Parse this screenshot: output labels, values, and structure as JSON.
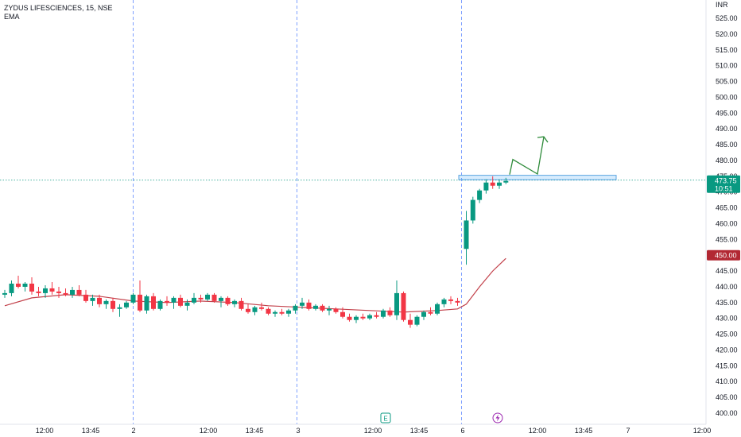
{
  "legend": {
    "symbol": "ZYDUS LIFESCIENCES, 15, NSE",
    "indicator": "EMA"
  },
  "chart_data": {
    "type": "candlestick",
    "currency": "INR",
    "ylim": [
      398,
      528
    ],
    "y_ticks": [
      "525.00",
      "520.00",
      "515.00",
      "510.00",
      "505.00",
      "500.00",
      "495.00",
      "490.00",
      "485.00",
      "480.00",
      "475.00",
      "470.00",
      "465.00",
      "460.00",
      "455.00",
      "450.00",
      "445.00",
      "440.00",
      "435.00",
      "430.00",
      "425.00",
      "420.00",
      "415.00",
      "410.00",
      "405.00",
      "400.00"
    ],
    "x_ticks": [
      "12:00",
      "13:45",
      "2",
      "12:00",
      "13:45",
      "3",
      "12:00",
      "13:45",
      "6",
      "12:00",
      "13:45",
      "7",
      "12:00"
    ],
    "day_separators": [
      "2",
      "3",
      "6"
    ],
    "last_price": {
      "value": "473.75",
      "countdown": "10:51",
      "color": "#089981"
    },
    "price_tag": {
      "value": "450.00",
      "color": "#b22833"
    },
    "up_color": "#089981",
    "down_color": "#f23645",
    "ema_color": "#c2404a",
    "candles": [
      [
        437.5,
        439.0,
        436.5,
        438.0
      ],
      [
        438.0,
        442.0,
        437.0,
        441.0
      ],
      [
        441.0,
        443.5,
        439.5,
        440.0
      ],
      [
        440.0,
        441.5,
        438.5,
        441.0
      ],
      [
        441.0,
        443.0,
        437.5,
        438.5
      ],
      [
        438.5,
        440.0,
        437.0,
        438.0
      ],
      [
        438.0,
        440.5,
        436.5,
        439.5
      ],
      [
        439.5,
        441.5,
        437.5,
        438.5
      ],
      [
        438.5,
        440.0,
        436.5,
        438.0
      ],
      [
        438.0,
        439.5,
        437.0,
        437.5
      ],
      [
        437.5,
        440.0,
        436.5,
        439.0
      ],
      [
        439.0,
        440.5,
        437.0,
        437.5
      ],
      [
        437.5,
        439.0,
        435.0,
        435.5
      ],
      [
        435.5,
        437.5,
        434.0,
        436.5
      ],
      [
        436.5,
        437.5,
        433.5,
        434.5
      ],
      [
        434.5,
        436.0,
        433.0,
        435.5
      ],
      [
        435.5,
        436.5,
        432.0,
        433.0
      ],
      [
        433.0,
        434.5,
        430.5,
        433.5
      ],
      [
        433.5,
        435.5,
        433.0,
        435.0
      ],
      [
        435.0,
        438.0,
        434.5,
        437.5
      ],
      [
        437.5,
        442.0,
        432.0,
        432.5
      ],
      [
        432.5,
        437.5,
        431.5,
        437.0
      ],
      [
        437.0,
        438.0,
        432.5,
        433.0
      ],
      [
        433.0,
        436.0,
        432.5,
        435.5
      ],
      [
        435.5,
        437.0,
        434.0,
        435.0
      ],
      [
        435.0,
        437.0,
        433.0,
        436.5
      ],
      [
        436.5,
        437.5,
        433.5,
        434.0
      ],
      [
        434.0,
        436.0,
        432.5,
        435.0
      ],
      [
        435.0,
        438.0,
        434.5,
        436.5
      ],
      [
        436.5,
        437.5,
        435.0,
        436.0
      ],
      [
        436.0,
        438.0,
        435.5,
        437.5
      ],
      [
        437.5,
        438.0,
        435.0,
        435.5
      ],
      [
        435.5,
        437.0,
        433.5,
        436.5
      ],
      [
        436.5,
        437.0,
        434.0,
        434.5
      ],
      [
        434.5,
        436.0,
        433.5,
        435.5
      ],
      [
        435.5,
        436.5,
        432.5,
        433.0
      ],
      [
        433.0,
        434.5,
        431.5,
        432.0
      ],
      [
        432.0,
        434.0,
        431.0,
        433.5
      ],
      [
        433.5,
        435.0,
        432.5,
        433.0
      ],
      [
        433.0,
        433.5,
        431.0,
        431.5
      ],
      [
        431.5,
        432.5,
        430.5,
        432.0
      ],
      [
        432.0,
        433.0,
        431.0,
        431.5
      ],
      [
        431.5,
        433.0,
        430.5,
        432.5
      ],
      [
        432.5,
        434.5,
        431.5,
        434.0
      ],
      [
        434.0,
        436.5,
        433.0,
        435.0
      ],
      [
        435.0,
        436.0,
        432.5,
        433.0
      ],
      [
        433.0,
        434.5,
        432.5,
        434.0
      ],
      [
        434.0,
        434.5,
        432.0,
        432.5
      ],
      [
        432.5,
        434.0,
        431.0,
        433.0
      ],
      [
        433.0,
        433.5,
        431.5,
        432.0
      ],
      [
        432.0,
        433.5,
        430.0,
        430.5
      ],
      [
        430.5,
        431.5,
        429.0,
        429.5
      ],
      [
        429.5,
        431.0,
        428.5,
        430.5
      ],
      [
        430.5,
        431.5,
        429.5,
        430.0
      ],
      [
        430.0,
        431.5,
        429.5,
        431.0
      ],
      [
        431.0,
        432.0,
        430.0,
        430.5
      ],
      [
        430.5,
        433.0,
        430.0,
        432.5
      ],
      [
        432.5,
        433.5,
        430.5,
        431.0
      ],
      [
        431.0,
        442.0,
        429.5,
        438.0
      ],
      [
        438.0,
        438.5,
        429.0,
        429.5
      ],
      [
        429.5,
        431.5,
        427.0,
        428.0
      ],
      [
        428.0,
        431.0,
        427.5,
        430.5
      ],
      [
        430.5,
        432.5,
        429.5,
        432.0
      ],
      [
        432.0,
        433.5,
        431.0,
        431.5
      ],
      [
        431.5,
        435.0,
        431.0,
        434.5
      ],
      [
        434.5,
        436.5,
        433.5,
        436.0
      ],
      [
        436.0,
        437.0,
        434.5,
        435.5
      ],
      [
        435.5,
        436.5,
        434.0,
        435.0
      ],
      [
        452.0,
        464.0,
        447.0,
        461.0
      ],
      [
        461.0,
        468.5,
        460.0,
        467.5
      ],
      [
        467.5,
        471.0,
        466.5,
        470.5
      ],
      [
        470.5,
        474.0,
        469.5,
        473.0
      ],
      [
        473.0,
        475.0,
        471.0,
        472.0
      ],
      [
        472.0,
        474.0,
        471.0,
        473.0
      ],
      [
        473.0,
        474.5,
        472.5,
        473.5
      ]
    ],
    "ema": [
      [
        0,
        434.0
      ],
      [
        4,
        436.5
      ],
      [
        9,
        437.5
      ],
      [
        14,
        437.0
      ],
      [
        19,
        435.5
      ],
      [
        24,
        435.0
      ],
      [
        29,
        435.5
      ],
      [
        34,
        435.0
      ],
      [
        39,
        434.0
      ],
      [
        44,
        433.5
      ],
      [
        49,
        433.0
      ],
      [
        54,
        432.5
      ],
      [
        59,
        432.0
      ],
      [
        64,
        432.5
      ],
      [
        67,
        433.0
      ],
      [
        68,
        434.5
      ],
      [
        70,
        440.0
      ],
      [
        72,
        445.0
      ],
      [
        74,
        449.0
      ]
    ],
    "annotation": {
      "zone_low": 473.9,
      "zone_high": 475.3,
      "path": [
        [
          460,
          475.5
        ],
        [
          462.5,
          480.3
        ],
        [
          465.8,
          475.7
        ],
        [
          468.5,
          487.5
        ]
      ]
    }
  }
}
